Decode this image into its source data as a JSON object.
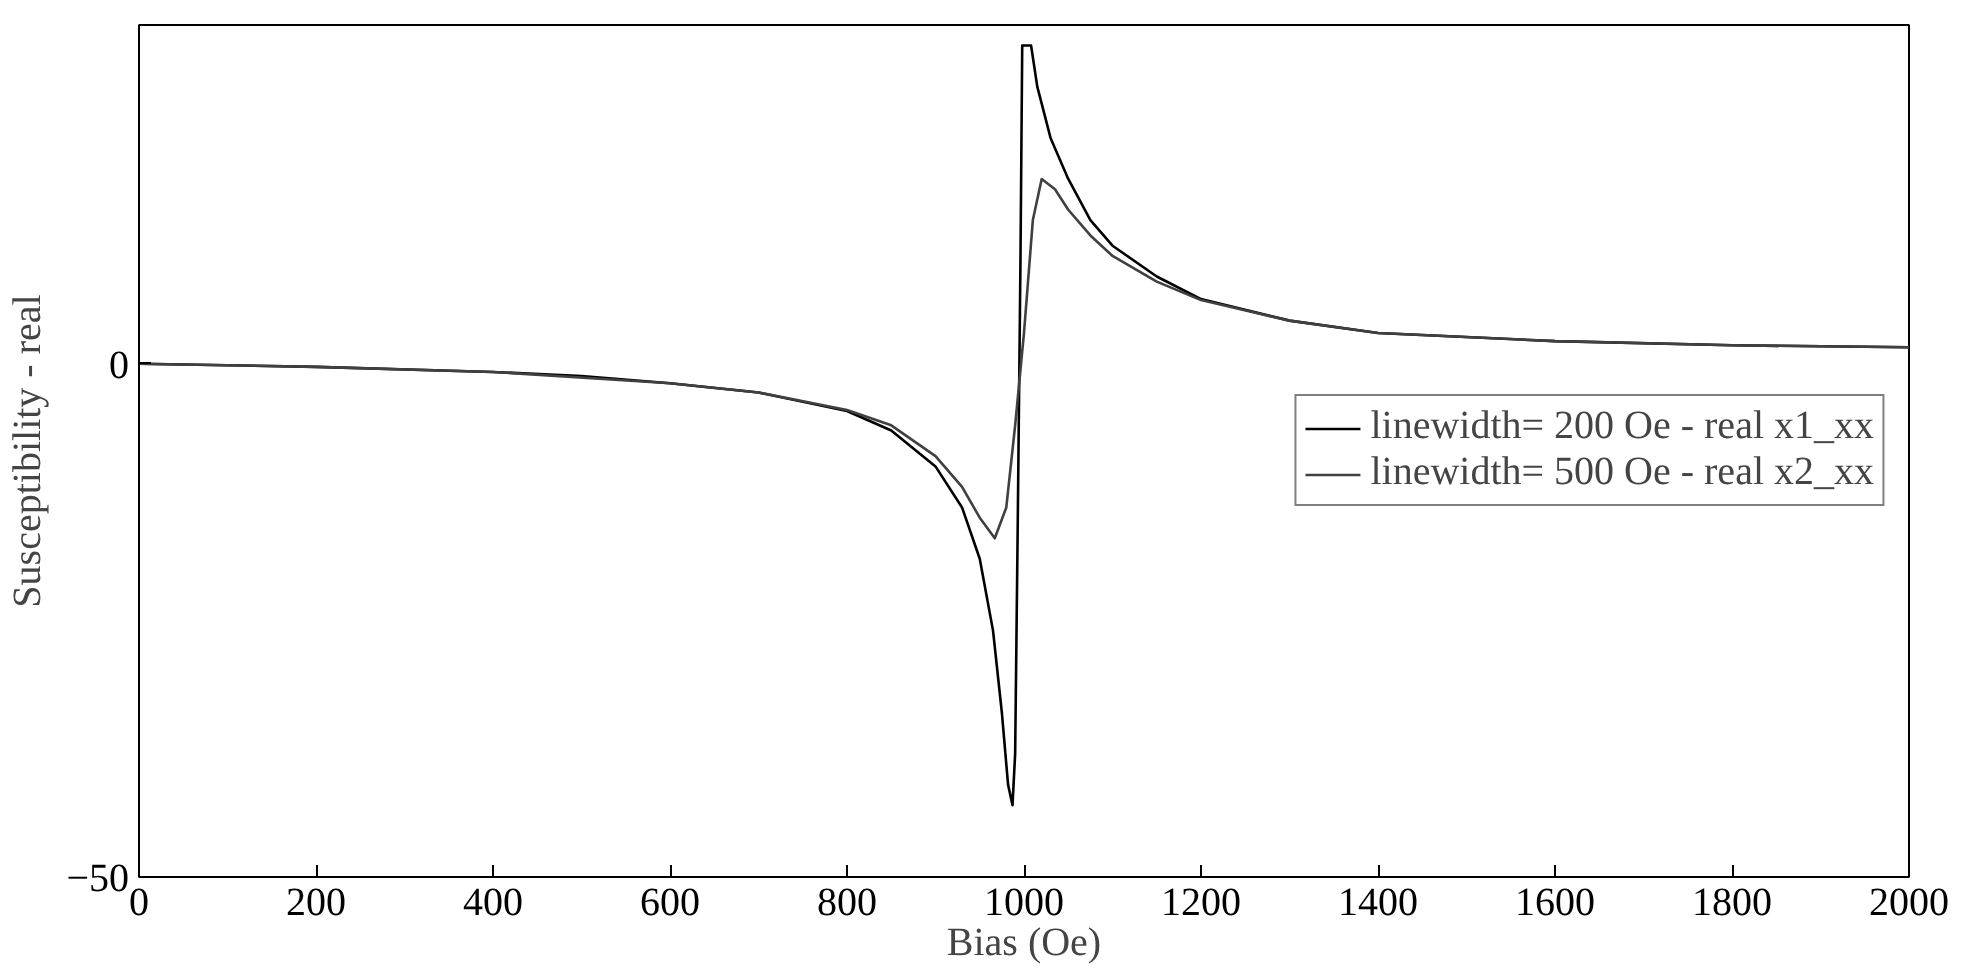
{
  "chart_data": {
    "type": "line",
    "xlabel": "Bias (Oe)",
    "ylabel": "Susceptibility - real",
    "xlim": [
      0,
      2000
    ],
    "xticks": [
      0,
      200,
      400,
      600,
      800,
      1000,
      1200,
      1400,
      1600,
      1800,
      2000
    ],
    "ylim": [
      -50,
      33
    ],
    "yticks": [
      -50,
      0
    ],
    "grid": false,
    "legend": "right",
    "marker": "none",
    "line_style": "solid",
    "series": [
      {
        "name": "linewidth= 200 Oe - real x1_xx",
        "color": "#000000",
        "x": [
          0,
          200,
          400,
          500,
          600,
          700,
          800,
          850,
          900,
          930,
          950,
          965,
          975,
          982,
          987,
          990,
          993,
          996,
          998,
          1008,
          1015,
          1030,
          1050,
          1075,
          1100,
          1150,
          1200,
          1300,
          1400,
          1600,
          1800,
          2000
        ],
        "values": [
          0,
          -0.3,
          -0.8,
          -1.2,
          -1.9,
          -2.8,
          -4.6,
          -6.5,
          -10,
          -14,
          -19,
          -26,
          -34,
          -41,
          -43,
          -38,
          -15,
          10,
          31,
          31,
          27,
          22,
          18,
          14,
          11.5,
          8.5,
          6.3,
          4.2,
          3.0,
          2.2,
          1.8,
          1.6
        ]
      },
      {
        "name": "linewidth= 500 Oe - real x2_xx",
        "color": "#404040",
        "x": [
          0,
          200,
          400,
          600,
          700,
          800,
          850,
          900,
          930,
          950,
          967,
          980,
          990,
          1000,
          1010,
          1020,
          1035,
          1050,
          1075,
          1100,
          1150,
          1200,
          1300,
          1400,
          1600,
          1800,
          2000
        ],
        "values": [
          0,
          -0.3,
          -0.8,
          -1.9,
          -2.8,
          -4.5,
          -6,
          -9,
          -12,
          -15,
          -17,
          -14,
          -6,
          3,
          14,
          18,
          17,
          15,
          12.5,
          10.5,
          8,
          6.2,
          4.2,
          3,
          2.2,
          1.8,
          1.6
        ]
      }
    ]
  }
}
